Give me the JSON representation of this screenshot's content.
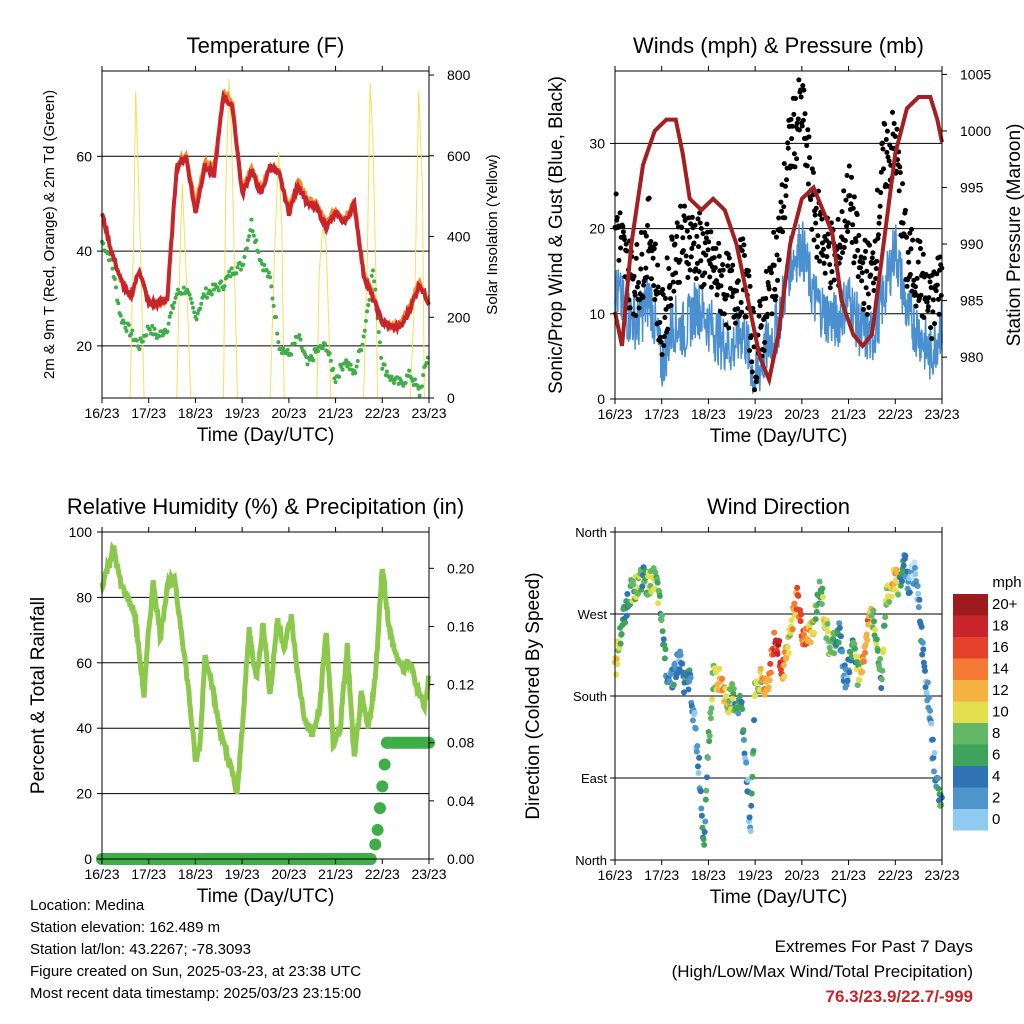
{
  "panels": {
    "temperature": {
      "title": "Temperature (F)",
      "ylabel_left": "2m & 9m T (Red, Orange) & 2m Td (Green)",
      "ylabel_right": "Solar Insolation (Yellow)",
      "xlabel": "Time (Day/UTC)"
    },
    "winds": {
      "title": "Winds (mph) & Pressure (mb)",
      "ylabel_left": "Sonic/Prop Wind & Gust (Blue, Black)",
      "ylabel_right": "Station Pressure (Maroon)",
      "xlabel": "Time (Day/UTC)"
    },
    "humidity": {
      "title": "Relative Humidity (%) & Precipitation (in)",
      "ylabel_left": "Percent & Total Rainfall",
      "xlabel": "Time (Day/UTC)"
    },
    "direction": {
      "title": "Wind Direction",
      "ylabel_left": "Direction (Colored By Speed)",
      "xlabel": "Time (Day/UTC)",
      "legend_title": "mph",
      "legend_labels": [
        "20+",
        "18",
        "16",
        "14",
        "12",
        "10",
        "8",
        "6",
        "4",
        "2",
        "0"
      ]
    }
  },
  "x_ticks": [
    "16/23",
    "17/23",
    "18/23",
    "19/23",
    "20/23",
    "21/23",
    "22/23",
    "23/23"
  ],
  "footer": {
    "location": "Location: Medina",
    "elevation": "Station elevation: 162.489 m",
    "latlon": "Station lat/lon: 43.2267; -78.3093",
    "created": "Figure created on Sun, 2025-03-23, at 23:38 UTC",
    "recent": "Most recent data timestamp: 2025/03/23 23:15:00"
  },
  "extremes": {
    "title": "Extremes For Past 7 Days",
    "subtitle": "(High/Low/Max Wind/Total Precipitation)",
    "values": "76.3/23.9/22.7/-999"
  },
  "colors": {
    "temp_2m": "#c8242b",
    "temp_9m": "#f5862f",
    "dewpoint": "#3fae49",
    "solar": "#f5e05a",
    "wind": "#4a90d0",
    "gust": "#000000",
    "pressure": "#a31f22",
    "rh": "#8cc84b",
    "precip": "#3fae49",
    "speed_scale": [
      "#bfe6f6",
      "#8fcbee",
      "#4e95cc",
      "#2f73b4",
      "#3fa35b",
      "#63b867",
      "#e3e04f",
      "#f6b143",
      "#f57a35",
      "#e4402a",
      "#c8242b",
      "#9e1a1d"
    ]
  },
  "chart_data": [
    {
      "type": "line",
      "title": "Temperature (F)",
      "xlabel": "Time (Day/UTC)",
      "ylabel": "2m & 9m T (Red, Orange) & 2m Td (Green)",
      "y2label": "Solar Insolation (Yellow)",
      "x_ticks": [
        "16/23",
        "17/23",
        "18/23",
        "19/23",
        "20/23",
        "21/23",
        "22/23",
        "23/23"
      ],
      "xlim": [
        0,
        7
      ],
      "ylim": [
        9,
        78
      ],
      "y2lim": [
        0,
        810
      ],
      "yticks": [
        20,
        40,
        60
      ],
      "y2ticks": [
        0,
        200,
        400,
        600,
        800
      ],
      "grid": "horizontal",
      "series": [
        {
          "name": "2m T",
          "color": "#c8242b",
          "x": [
            0,
            0.2,
            0.4,
            0.6,
            0.8,
            1.0,
            1.2,
            1.4,
            1.6,
            1.8,
            2.0,
            2.2,
            2.4,
            2.6,
            2.8,
            3.0,
            3.2,
            3.4,
            3.6,
            3.8,
            4.0,
            4.2,
            4.4,
            4.6,
            4.8,
            5.0,
            5.2,
            5.4,
            5.6,
            5.8,
            6.0,
            6.2,
            6.4,
            6.6,
            6.8,
            7.0
          ],
          "values": [
            48,
            40,
            34,
            30,
            36,
            29,
            29,
            30,
            58,
            60,
            48,
            58,
            56,
            73,
            70,
            52,
            57,
            52,
            58,
            56,
            48,
            54,
            50,
            49,
            45,
            48,
            46,
            50,
            35,
            30,
            25,
            24,
            24,
            28,
            33,
            29
          ]
        },
        {
          "name": "9m T",
          "color": "#f5862f",
          "x": [
            0,
            0.2,
            0.4,
            0.6,
            0.8,
            1.0,
            1.2,
            1.4,
            1.6,
            1.8,
            2.0,
            2.2,
            2.4,
            2.6,
            2.8,
            3.0,
            3.2,
            3.4,
            3.6,
            3.8,
            4.0,
            4.2,
            4.4,
            4.6,
            4.8,
            5.0,
            5.2,
            5.4,
            5.6,
            5.8,
            6.0,
            6.2,
            6.4,
            6.6,
            6.8,
            7.0
          ],
          "values": [
            48,
            40,
            34,
            30,
            36,
            29,
            29,
            30,
            58,
            61,
            50,
            59,
            58,
            74,
            71,
            53,
            58,
            53,
            58,
            57,
            49,
            55,
            51,
            50,
            46,
            49,
            47,
            51,
            36,
            31,
            25,
            24,
            25,
            29,
            34,
            29
          ]
        },
        {
          "name": "2m Td",
          "color": "#3fae49",
          "x": [
            0,
            0.2,
            0.4,
            0.6,
            0.8,
            1.0,
            1.2,
            1.4,
            1.6,
            1.8,
            2.0,
            2.2,
            2.4,
            2.6,
            2.8,
            3.0,
            3.2,
            3.4,
            3.6,
            3.8,
            4.0,
            4.2,
            4.4,
            4.6,
            4.8,
            5.0,
            5.2,
            5.4,
            5.6,
            5.8,
            6.0,
            6.2,
            6.4,
            6.6,
            6.8,
            7.0
          ],
          "values": [
            42,
            38,
            26,
            23,
            20,
            24,
            22,
            24,
            31,
            32,
            26,
            31,
            32,
            33,
            36,
            37,
            46,
            38,
            34,
            20,
            18,
            22,
            16,
            19,
            20,
            13,
            17,
            14,
            22,
            36,
            16,
            13,
            12,
            14,
            10,
            19
          ]
        },
        {
          "name": "Solar",
          "axis": "y2",
          "color": "#f5e05a",
          "x": [
            0.6,
            0.68,
            0.72,
            0.76,
            0.84,
            0.9,
            1.6,
            1.68,
            1.72,
            1.76,
            1.84,
            1.9,
            2.6,
            2.65,
            2.72,
            2.78,
            2.85,
            2.9,
            3.6,
            3.7,
            3.78,
            3.85,
            3.9,
            4.6,
            4.65,
            4.72,
            4.8,
            4.86,
            4.9,
            5.6,
            5.68,
            5.74,
            5.8,
            5.86,
            5.9,
            6.6,
            6.7,
            6.78,
            6.86,
            6.9
          ],
          "values": [
            0,
            420,
            760,
            620,
            300,
            0,
            0,
            400,
            530,
            420,
            200,
            0,
            0,
            520,
            790,
            620,
            250,
            0,
            0,
            380,
            610,
            420,
            0,
            0,
            310,
            420,
            380,
            160,
            0,
            0,
            350,
            780,
            640,
            320,
            0,
            0,
            280,
            760,
            520,
            0
          ]
        }
      ]
    },
    {
      "type": "line",
      "title": "Winds (mph) & Pressure (mb)",
      "xlabel": "Time (Day/UTC)",
      "ylabel": "Sonic/Prop Wind & Gust (Blue, Black)",
      "y2label": "Station Pressure (Maroon)",
      "x_ticks": [
        "16/23",
        "17/23",
        "18/23",
        "19/23",
        "20/23",
        "21/23",
        "22/23",
        "23/23"
      ],
      "xlim": [
        0,
        7
      ],
      "ylim": [
        0,
        38.5
      ],
      "y2lim": [
        976.3,
        1005.3
      ],
      "yticks": [
        0,
        10,
        20,
        30
      ],
      "y2ticks": [
        980,
        985,
        990,
        995,
        1000,
        1005
      ],
      "grid": "horizontal",
      "series": [
        {
          "name": "Wind",
          "color": "#4a90d0",
          "x": [
            0,
            0.25,
            0.5,
            0.75,
            1.0,
            1.25,
            1.5,
            1.75,
            2.0,
            2.25,
            2.5,
            2.75,
            3.0,
            3.25,
            3.5,
            3.75,
            4.0,
            4.25,
            4.5,
            4.75,
            5.0,
            5.25,
            5.5,
            5.75,
            6.0,
            6.25,
            6.5,
            6.75,
            7.0
          ],
          "values": [
            13,
            10,
            9,
            12,
            4,
            9,
            8,
            11,
            9,
            7,
            6,
            8,
            2,
            6,
            9,
            16,
            18,
            12,
            10,
            9,
            12,
            8,
            7,
            12,
            18,
            10,
            8,
            5,
            9
          ]
        },
        {
          "name": "Gust",
          "color": "#000000",
          "x": [
            0,
            0.25,
            0.5,
            0.75,
            1.0,
            1.25,
            1.5,
            1.75,
            2.0,
            2.25,
            2.5,
            2.75,
            3.0,
            3.25,
            3.5,
            3.75,
            4.0,
            4.25,
            4.5,
            4.75,
            5.0,
            5.25,
            5.5,
            5.75,
            6.0,
            6.25,
            6.5,
            6.75,
            7.0
          ],
          "values": [
            22,
            15,
            14,
            20,
            8,
            17,
            19,
            18,
            16,
            14,
            12,
            15,
            5,
            11,
            18,
            30,
            34,
            22,
            18,
            16,
            24,
            15,
            14,
            28,
            30,
            16,
            15,
            10,
            15
          ]
        },
        {
          "name": "Pressure",
          "axis": "y2",
          "color": "#a31f22",
          "x": [
            0,
            0.15,
            0.35,
            0.6,
            0.85,
            1.1,
            1.3,
            1.45,
            1.6,
            1.85,
            2.1,
            2.35,
            2.6,
            2.85,
            3.1,
            3.3,
            3.5,
            3.75,
            4.0,
            4.25,
            4.45,
            4.65,
            4.85,
            5.1,
            5.3,
            5.5,
            5.75,
            6.0,
            6.25,
            6.5,
            6.75,
            6.9,
            7.0
          ],
          "values": [
            984,
            981,
            990,
            997,
            1000,
            1001,
            1001,
            998,
            994,
            993,
            994,
            993,
            990,
            985,
            980,
            978,
            982,
            990,
            994,
            995,
            993,
            991,
            985,
            982,
            981,
            982,
            990,
            998,
            1002,
            1003,
            1003,
            1001,
            999
          ]
        }
      ]
    },
    {
      "type": "line",
      "title": "Relative Humidity (%) & Precipitation (in)",
      "xlabel": "Time (Day/UTC)",
      "ylabel": "Percent & Total Rainfall",
      "x_ticks": [
        "16/23",
        "17/23",
        "18/23",
        "19/23",
        "20/23",
        "21/23",
        "22/23",
        "23/23"
      ],
      "xlim": [
        0,
        7
      ],
      "ylim": [
        0,
        100
      ],
      "y2lim": [
        0,
        0.225
      ],
      "yticks": [
        0,
        20,
        40,
        60,
        80,
        100
      ],
      "y2ticks": [
        0.0,
        0.04,
        0.08,
        0.12,
        0.16,
        0.2
      ],
      "grid": "horizontal",
      "series": [
        {
          "name": "RH",
          "color": "#8cc84b",
          "x": [
            0,
            0.1,
            0.25,
            0.4,
            0.55,
            0.7,
            0.9,
            1.0,
            1.1,
            1.25,
            1.4,
            1.55,
            1.7,
            1.85,
            2.0,
            2.1,
            2.2,
            2.3,
            2.45,
            2.6,
            2.75,
            2.9,
            3.0,
            3.15,
            3.3,
            3.45,
            3.6,
            3.75,
            3.9,
            4.05,
            4.2,
            4.35,
            4.5,
            4.65,
            4.8,
            4.95,
            5.1,
            5.25,
            5.4,
            5.55,
            5.7,
            5.85,
            6.0,
            6.15,
            6.3,
            6.45,
            6.6,
            6.75,
            6.9,
            7.0
          ],
          "values": [
            84,
            88,
            95,
            84,
            80,
            75,
            50,
            70,
            85,
            68,
            84,
            85,
            70,
            52,
            30,
            35,
            62,
            58,
            45,
            35,
            28,
            20,
            40,
            70,
            55,
            72,
            50,
            73,
            65,
            74,
            55,
            42,
            38,
            45,
            70,
            35,
            40,
            65,
            30,
            50,
            40,
            55,
            90,
            70,
            62,
            58,
            60,
            52,
            47,
            56
          ]
        },
        {
          "name": "Total Precipitation",
          "axis": "y2",
          "color": "#3fae49",
          "x": [
            0,
            5.75,
            5.85,
            5.9,
            5.95,
            6.0,
            6.05,
            6.1,
            7.0
          ],
          "values": [
            0,
            0,
            0.01,
            0.02,
            0.035,
            0.05,
            0.065,
            0.08,
            0.08
          ]
        }
      ]
    },
    {
      "type": "scatter",
      "title": "Wind Direction",
      "xlabel": "Time (Day/UTC)",
      "ylabel": "Direction (Colored By Speed)",
      "x_ticks": [
        "16/23",
        "17/23",
        "18/23",
        "19/23",
        "20/23",
        "21/23",
        "22/23",
        "23/23"
      ],
      "y_ticks": [
        "North",
        "East",
        "South",
        "West",
        "North"
      ],
      "xlim": [
        0,
        7
      ],
      "ylim": [
        0,
        360
      ],
      "legend": "right",
      "legend_title": "mph",
      "series": [
        {
          "name": "Direction",
          "x": [
            0,
            0.1,
            0.2,
            0.3,
            0.4,
            0.5,
            0.6,
            0.7,
            0.8,
            0.9,
            1.0,
            1.1,
            1.2,
            1.3,
            1.4,
            1.5,
            1.6,
            1.7,
            1.8,
            1.9,
            2.0,
            2.1,
            2.2,
            2.3,
            2.4,
            2.5,
            2.6,
            2.7,
            2.8,
            2.9,
            3.0,
            3.1,
            3.2,
            3.3,
            3.4,
            3.5,
            3.6,
            3.7,
            3.8,
            3.9,
            4.0,
            4.1,
            4.2,
            4.3,
            4.4,
            4.5,
            4.6,
            4.7,
            4.8,
            4.9,
            5.0,
            5.1,
            5.2,
            5.3,
            5.4,
            5.5,
            5.6,
            5.7,
            5.8,
            5.9,
            6.0,
            6.1,
            6.2,
            6.3,
            6.4,
            6.5,
            6.6,
            6.7,
            6.8,
            6.9,
            7.0
          ],
          "values": [
            210,
            240,
            270,
            290,
            300,
            300,
            310,
            300,
            310,
            300,
            260,
            210,
            200,
            210,
            220,
            190,
            200,
            150,
            100,
            20,
            130,
            200,
            200,
            190,
            170,
            180,
            170,
            170,
            110,
            30,
            190,
            200,
            190,
            200,
            240,
            230,
            210,
            230,
            260,
            290,
            250,
            240,
            250,
            270,
            300,
            260,
            230,
            240,
            250,
            200,
            210,
            240,
            200,
            220,
            250,
            270,
            250,
            200,
            290,
            300,
            310,
            300,
            330,
            300,
            320,
            290,
            220,
            180,
            120,
            80,
            60
          ],
          "speeds": [
            14,
            10,
            8,
            6,
            10,
            12,
            8,
            10,
            12,
            10,
            8,
            6,
            4,
            6,
            4,
            8,
            6,
            4,
            4,
            6,
            8,
            10,
            12,
            14,
            12,
            10,
            8,
            6,
            4,
            4,
            10,
            12,
            14,
            16,
            18,
            20,
            16,
            12,
            14,
            16,
            18,
            16,
            14,
            10,
            8,
            12,
            10,
            8,
            6,
            4,
            6,
            8,
            10,
            14,
            16,
            12,
            10,
            8,
            10,
            12,
            14,
            8,
            6,
            4,
            2,
            4,
            6,
            4,
            4,
            6,
            8
          ]
        }
      ]
    }
  ]
}
